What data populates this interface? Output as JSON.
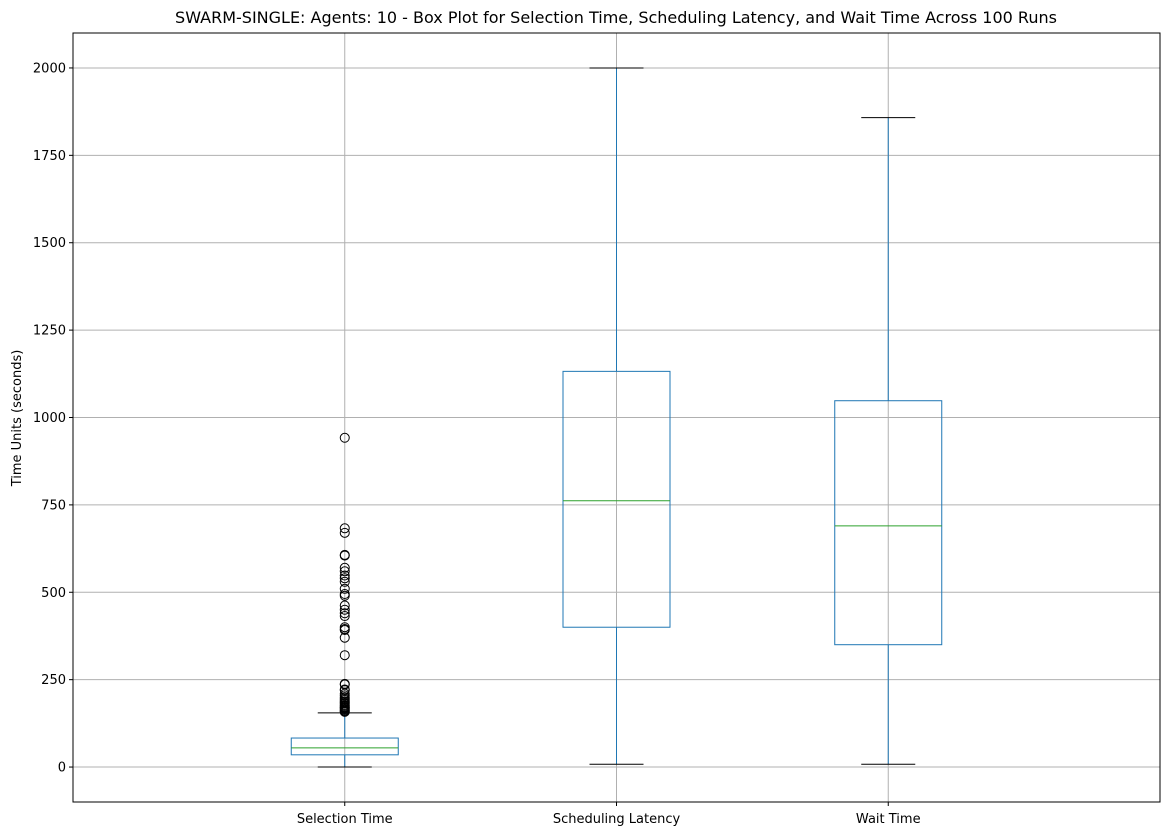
{
  "chart_data": {
    "type": "box",
    "title": "SWARM-SINGLE: Agents: 10 - Box Plot for Selection Time, Scheduling Latency, and Wait Time Across 100 Runs",
    "xlabel": "",
    "ylabel": "Time Units (seconds)",
    "ylim": [
      -100,
      2100
    ],
    "yticks": [
      0,
      250,
      500,
      750,
      1000,
      1250,
      1500,
      1750,
      2000
    ],
    "grid": true,
    "colors": {
      "box": "#1f77b4",
      "median": "#2ca02c",
      "whisker": "#1f77b4",
      "cap": "#000000",
      "flier": "#000000",
      "grid": "#b0b0b0"
    },
    "categories": [
      "Selection Time",
      "Scheduling Latency",
      "Wait Time"
    ],
    "boxes": [
      {
        "name": "Selection Time",
        "whisker_low": 0,
        "q1": 35,
        "median": 55,
        "q3": 83,
        "whisker_high": 155,
        "fliers": [
          942,
          683,
          670,
          607,
          605,
          570,
          560,
          548,
          540,
          530,
          510,
          495,
          490,
          462,
          450,
          440,
          432,
          400,
          395,
          392,
          370,
          320,
          238,
          236,
          222,
          220,
          210,
          205,
          200,
          196,
          192,
          188,
          185,
          182,
          178,
          175,
          172,
          170,
          168,
          165,
          162,
          160,
          158
        ]
      },
      {
        "name": "Scheduling Latency",
        "whisker_low": 8,
        "q1": 400,
        "median": 762,
        "q3": 1132,
        "whisker_high": 2000,
        "fliers": []
      },
      {
        "name": "Wait Time",
        "whisker_low": 8,
        "q1": 350,
        "median": 690,
        "q3": 1048,
        "whisker_high": 1858,
        "fliers": []
      }
    ]
  }
}
